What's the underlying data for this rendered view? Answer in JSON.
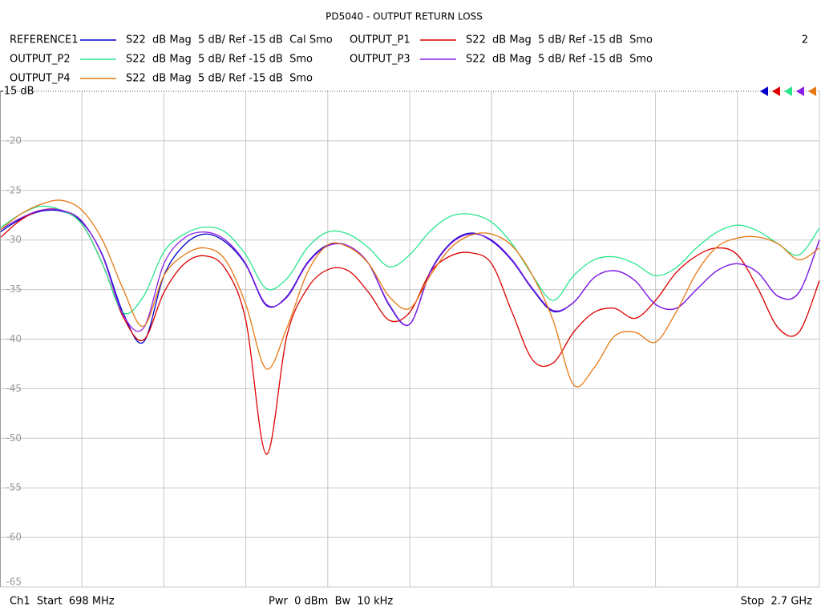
{
  "chart_data": {
    "type": "line",
    "title": "PD5040 - OUTPUT RETURN LOSS",
    "channel_number": "2",
    "footer": {
      "start": "Ch1  Start  698 MHz",
      "power": "Pwr  0 dBm  Bw  10 kHz",
      "stop": "Stop  2.7 GHz"
    },
    "xlim": [
      698,
      2700
    ],
    "ylim": [
      -65,
      -15
    ],
    "yticks": [
      {
        "value": -15,
        "label": "-15 dB"
      },
      -20,
      -25,
      -30,
      -35,
      -40,
      -45,
      -50,
      -55,
      -60,
      -65
    ],
    "grid": true,
    "x": [
      698,
      748.05,
      798.1,
      848.15,
      898.2,
      948.25,
      998.3,
      1048.35,
      1098.4,
      1148.45,
      1198.5,
      1248.55,
      1298.6,
      1348.65,
      1398.7,
      1448.75,
      1498.8,
      1548.85,
      1598.9,
      1648.95,
      1699,
      1749.05,
      1799.1,
      1849.15,
      1899.2,
      1949.25,
      1999.3,
      2049.35,
      2099.4,
      2149.45,
      2199.5,
      2249.55,
      2299.6,
      2349.65,
      2399.7,
      2449.75,
      2499.8,
      2549.85,
      2599.9,
      2649.95,
      2700
    ],
    "series": [
      {
        "name": "REFERENCE1",
        "format": "S22  dB Mag  5 dB/ Ref -15 dB  Cal Smo",
        "color": "#0000c8",
        "values": [
          -29.2,
          -27.9,
          -27.1,
          -27.1,
          -28.2,
          -31.5,
          -37.3,
          -40.3,
          -33.6,
          -30.5,
          -29.4,
          -30.2,
          -32.5,
          -36.6,
          -35.7,
          -32.3,
          -30.5,
          -30.6,
          -32.4,
          -36.6,
          -38.5,
          -33.2,
          -30.3,
          -29.3,
          -30.1,
          -32.1,
          -35.0,
          -37.2,
          -36.3,
          -33.8,
          -33.1,
          -34.1,
          -36.5,
          -36.9,
          -35.0,
          -33.1,
          -32.4,
          -33.3,
          -35.7,
          -35.3,
          -30.0
        ]
      },
      {
        "name": "OUTPUT_P1",
        "format": "S22  dB Mag  5 dB/ Ref -15 dB  Smo",
        "color": "#dc0000",
        "values": [
          -29.8,
          -28.0,
          -27.0,
          -27.0,
          -28.4,
          -32.4,
          -37.7,
          -40.1,
          -35.3,
          -32.4,
          -31.6,
          -32.9,
          -38.1,
          -51.6,
          -39.7,
          -34.9,
          -33.0,
          -33.1,
          -35.3,
          -38.1,
          -37.3,
          -33.3,
          -31.6,
          -31.3,
          -32.4,
          -37.3,
          -42.1,
          -42.4,
          -39.3,
          -37.3,
          -36.9,
          -37.9,
          -36.1,
          -33.3,
          -31.6,
          -30.8,
          -31.5,
          -34.9,
          -38.9,
          -39.3,
          -34.1
        ]
      },
      {
        "name": "OUTPUT_P2",
        "format": "S22  dB Mag  5 dB/ Ref -15 dB  Smo",
        "color": "#28e68c",
        "values": [
          -28.8,
          -27.4,
          -26.6,
          -27.0,
          -28.4,
          -32.4,
          -37.3,
          -35.7,
          -31.2,
          -29.4,
          -28.7,
          -29.2,
          -31.5,
          -34.9,
          -33.9,
          -30.8,
          -29.2,
          -29.4,
          -30.8,
          -32.7,
          -31.5,
          -29.1,
          -27.6,
          -27.4,
          -28.2,
          -30.4,
          -33.6,
          -36.1,
          -33.6,
          -32.0,
          -31.7,
          -32.4,
          -33.6,
          -32.8,
          -30.8,
          -29.2,
          -28.5,
          -29.1,
          -30.4,
          -31.5,
          -28.8
        ]
      },
      {
        "name": "OUTPUT_P3",
        "format": "S22  dB Mag  5 dB/ Ref -15 dB  Smo",
        "color": "#8c1ee6",
        "values": [
          -29.0,
          -27.8,
          -27.0,
          -27.0,
          -28.1,
          -31.6,
          -37.5,
          -38.9,
          -32.4,
          -29.8,
          -29.2,
          -30.0,
          -32.4,
          -36.5,
          -35.8,
          -32.4,
          -30.6,
          -30.6,
          -32.4,
          -36.5,
          -38.5,
          -33.3,
          -30.4,
          -29.4,
          -30.0,
          -32.0,
          -34.9,
          -37.1,
          -36.3,
          -33.8,
          -33.1,
          -34.1,
          -36.5,
          -36.9,
          -35.0,
          -33.1,
          -32.4,
          -33.3,
          -35.7,
          -35.3,
          -30.0
        ]
      },
      {
        "name": "OUTPUT_P4",
        "format": "S22  dB Mag  5 dB/ Ref -15 dB  Smo",
        "color": "#e67814",
        "values": [
          -29.0,
          -27.4,
          -26.4,
          -26.0,
          -27.0,
          -30.0,
          -34.9,
          -38.7,
          -33.6,
          -31.5,
          -30.8,
          -32.0,
          -36.5,
          -43.0,
          -38.9,
          -33.3,
          -30.5,
          -30.7,
          -32.4,
          -35.7,
          -36.9,
          -33.6,
          -30.8,
          -29.5,
          -29.4,
          -30.6,
          -33.6,
          -38.1,
          -44.6,
          -42.9,
          -39.7,
          -39.3,
          -40.3,
          -37.3,
          -33.3,
          -30.7,
          -29.8,
          -29.7,
          -30.4,
          -32.0,
          -30.8
        ]
      }
    ]
  }
}
